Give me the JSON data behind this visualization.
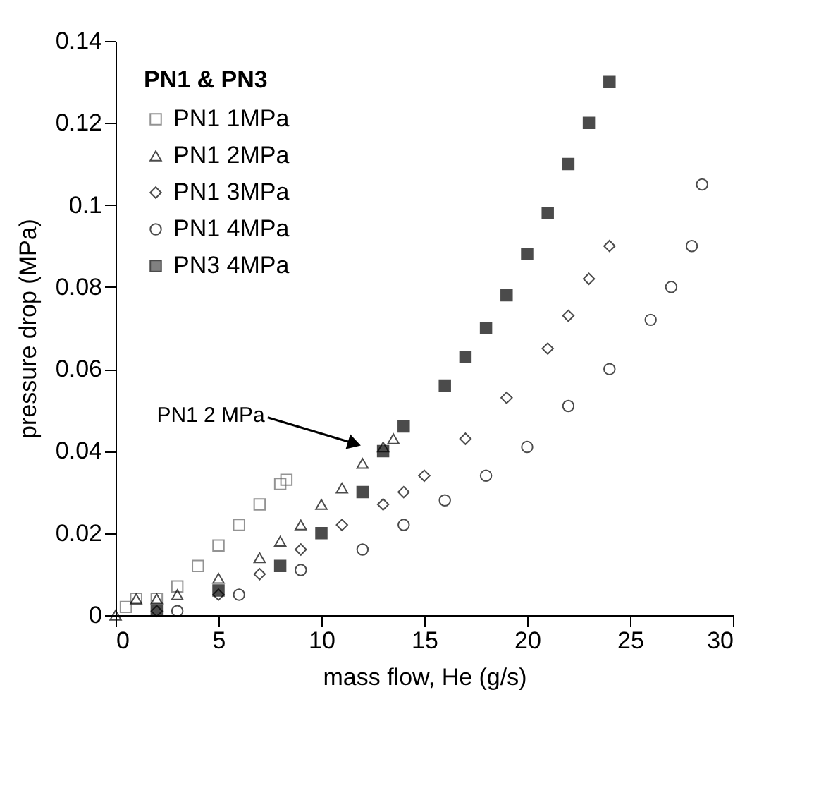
{
  "chart_data": {
    "type": "scatter",
    "xlabel": "mass flow, He (g/s)",
    "ylabel": "pressure drop (MPa)",
    "legend_title": "PN1 & PN3",
    "legend": "top left",
    "grid": false,
    "xlim": [
      0,
      30
    ],
    "xticks": [
      0,
      5,
      10,
      15,
      20,
      25,
      30
    ],
    "ylim": [
      0,
      0.14
    ],
    "yticks": [
      0,
      0.02,
      0.04,
      0.06,
      0.08,
      0.1,
      0.12,
      0.14
    ],
    "series": [
      {
        "name": "PN1  1MPa",
        "color": "#666666",
        "marker": "square",
        "x": [
          0.5,
          1,
          2,
          3,
          4,
          5,
          6,
          7,
          8,
          8.3
        ],
        "values": [
          0.002,
          0.004,
          0.004,
          0.007,
          0.012,
          0.017,
          0.022,
          0.027,
          0.032,
          0.033
        ]
      },
      {
        "name": "PN1  2MPa",
        "color": "#000000",
        "marker": "triangle",
        "x": [
          0,
          1,
          2,
          3,
          5,
          7,
          8,
          9,
          10,
          11,
          12,
          13,
          13.5
        ],
        "values": [
          0,
          0.004,
          0.004,
          0.005,
          0.009,
          0.014,
          0.018,
          0.022,
          0.027,
          0.031,
          0.037,
          0.041,
          0.043
        ]
      },
      {
        "name": "PN1  3MPa",
        "color": "#000000",
        "marker": "diamond",
        "x": [
          2,
          5,
          7,
          9,
          11,
          13,
          14,
          15,
          17,
          19,
          21,
          22,
          23,
          24
        ],
        "values": [
          0.001,
          0.005,
          0.01,
          0.016,
          0.022,
          0.027,
          0.03,
          0.034,
          0.043,
          0.053,
          0.065,
          0.073,
          0.082,
          0.09
        ]
      },
      {
        "name": "PN1 4MPa",
        "color": "#000000",
        "marker": "circle",
        "x": [
          3,
          6,
          9,
          12,
          14,
          16,
          18,
          20,
          22,
          24,
          26,
          27,
          28,
          28.5
        ],
        "values": [
          0.001,
          0.005,
          0.011,
          0.016,
          0.022,
          0.028,
          0.034,
          0.041,
          0.051,
          0.06,
          0.072,
          0.08,
          0.09,
          0.105
        ]
      },
      {
        "name": "PN3 4MPa",
        "color": "#000000",
        "marker": "square",
        "x": [
          2,
          5,
          8,
          10,
          12,
          13,
          14,
          16,
          17,
          18,
          19,
          20,
          21,
          22,
          23,
          24
        ],
        "values": [
          0.001,
          0.006,
          0.012,
          0.02,
          0.03,
          0.04,
          0.046,
          0.056,
          0.063,
          0.07,
          0.078,
          0.088,
          0.098,
          0.11,
          0.12,
          0.13
        ]
      }
    ],
    "annotations": [
      {
        "text": "PN1 2 MPa",
        "x": 11.5,
        "y": 0.042
      }
    ]
  }
}
